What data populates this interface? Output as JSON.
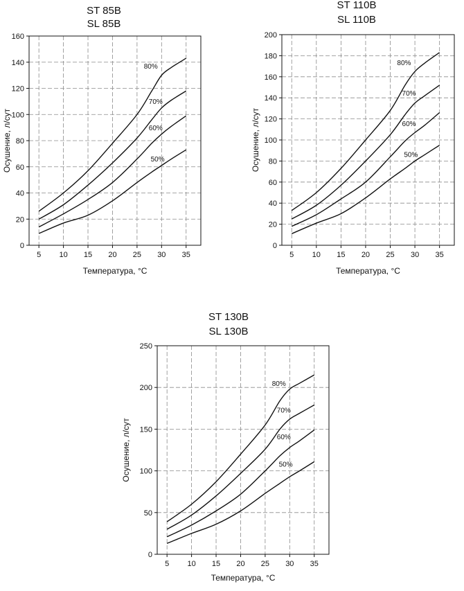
{
  "chart_data": [
    {
      "type": "line",
      "title_lines": [
        "ST 85B",
        "SL 85B"
      ],
      "xlabel": "Температура, °C",
      "ylabel": "Осушение, л/сут",
      "xlim": [
        3,
        38
      ],
      "ylim": [
        0,
        160
      ],
      "x_ticks": [
        5,
        10,
        15,
        20,
        25,
        30,
        35
      ],
      "y_ticks": [
        0,
        20,
        40,
        60,
        80,
        100,
        120,
        140,
        160
      ],
      "grid": true,
      "series": [
        {
          "name": "80%",
          "x": [
            5,
            10,
            15,
            20,
            25,
            28,
            30,
            32,
            35
          ],
          "y": [
            26,
            40,
            57,
            78,
            100,
            118,
            130,
            136,
            143
          ],
          "label_at": [
            27.8,
            135
          ]
        },
        {
          "name": "70%",
          "x": [
            5,
            10,
            15,
            20,
            25,
            28,
            30,
            32,
            35
          ],
          "y": [
            20,
            31,
            46,
            63,
            82,
            96,
            105,
            111,
            118
          ],
          "label_at": [
            28.8,
            108
          ]
        },
        {
          "name": "60%",
          "x": [
            5,
            10,
            15,
            20,
            25,
            28,
            30,
            32,
            35
          ],
          "y": [
            14,
            24,
            35,
            48,
            66,
            78,
            85,
            91,
            99
          ],
          "label_at": [
            28.8,
            88
          ]
        },
        {
          "name": "50%",
          "x": [
            5,
            10,
            15,
            20,
            25,
            28,
            30,
            32,
            35
          ],
          "y": [
            9,
            17,
            23,
            34,
            48,
            56,
            61,
            66,
            73
          ],
          "label_at": [
            29.2,
            64
          ]
        }
      ]
    },
    {
      "type": "line",
      "title_lines": [
        "ST 110B",
        "SL 110B"
      ],
      "xlabel": "Температура, °C",
      "ylabel": "Осушение, л/сут",
      "xlim": [
        3,
        38
      ],
      "ylim": [
        0,
        200
      ],
      "x_ticks": [
        5,
        10,
        15,
        20,
        25,
        30,
        35
      ],
      "y_ticks": [
        0,
        20,
        40,
        60,
        80,
        100,
        120,
        140,
        160,
        180,
        200
      ],
      "grid": true,
      "series": [
        {
          "name": "80%",
          "x": [
            5,
            10,
            15,
            20,
            25,
            28,
            30,
            32,
            35
          ],
          "y": [
            33,
            50,
            73,
            100,
            128,
            152,
            165,
            173,
            183
          ],
          "label_at": [
            27.8,
            171
          ]
        },
        {
          "name": "70%",
          "x": [
            5,
            10,
            15,
            20,
            25,
            28,
            30,
            32,
            35
          ],
          "y": [
            25,
            38,
            57,
            80,
            105,
            124,
            135,
            142,
            152
          ],
          "label_at": [
            28.8,
            142
          ]
        },
        {
          "name": "60%",
          "x": [
            5,
            10,
            15,
            20,
            25,
            28,
            30,
            32,
            35
          ],
          "y": [
            18,
            29,
            44,
            60,
            84,
            99,
            107,
            114,
            126
          ],
          "label_at": [
            28.8,
            113
          ]
        },
        {
          "name": "50%",
          "x": [
            5,
            10,
            15,
            20,
            25,
            28,
            30,
            32,
            35
          ],
          "y": [
            11,
            21,
            30,
            45,
            63,
            73,
            80,
            86,
            95
          ],
          "label_at": [
            29.2,
            84
          ]
        }
      ]
    },
    {
      "type": "line",
      "title_lines": [
        "ST 130B",
        "SL 130B"
      ],
      "xlabel": "Температура, °C",
      "ylabel": "Осушение, л/сут",
      "xlim": [
        3,
        38
      ],
      "ylim": [
        0,
        250
      ],
      "x_ticks": [
        5,
        10,
        15,
        20,
        25,
        30,
        35
      ],
      "y_ticks": [
        0,
        50,
        100,
        150,
        200,
        250
      ],
      "grid": true,
      "series": [
        {
          "name": "80%",
          "x": [
            5,
            10,
            15,
            20,
            25,
            28,
            30,
            32,
            35
          ],
          "y": [
            39,
            60,
            87,
            120,
            155,
            184,
            198,
            205,
            215
          ],
          "label_at": [
            27.8,
            202
          ]
        },
        {
          "name": "70%",
          "x": [
            5,
            10,
            15,
            20,
            25,
            28,
            30,
            32,
            35
          ],
          "y": [
            30,
            47,
            70,
            97,
            126,
            150,
            162,
            169,
            179
          ],
          "label_at": [
            28.8,
            170
          ]
        },
        {
          "name": "60%",
          "x": [
            5,
            10,
            15,
            20,
            25,
            28,
            30,
            32,
            35
          ],
          "y": [
            21,
            35,
            52,
            72,
            100,
            118,
            128,
            136,
            149
          ],
          "label_at": [
            28.8,
            138
          ]
        },
        {
          "name": "50%",
          "x": [
            5,
            10,
            15,
            20,
            25,
            28,
            30,
            32,
            35
          ],
          "y": [
            13,
            25,
            36,
            52,
            73,
            85,
            93,
            100,
            111
          ],
          "label_at": [
            29.2,
            105
          ]
        }
      ]
    }
  ]
}
